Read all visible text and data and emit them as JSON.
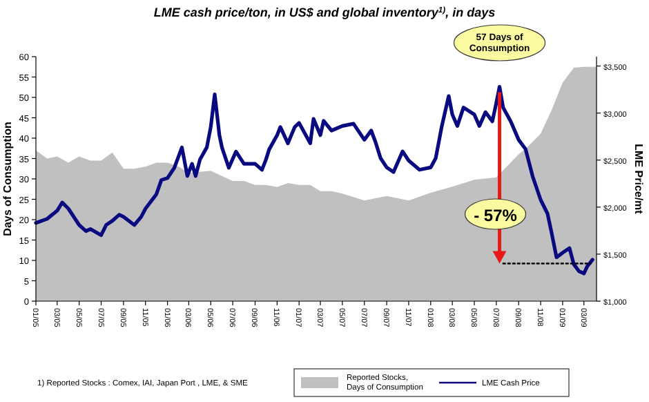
{
  "chart_data": {
    "type": "area",
    "title": "LME cash price/ton, in US$ and global inventory$^{1)}$, in days",
    "ylabel": "Days of Consumption",
    "y2label": "LME Price/mt",
    "xlim": [
      "2005-01-01",
      "2009-04-05"
    ],
    "xticks": [
      {
        "value": "2005-01",
        "label": "01/05"
      },
      {
        "value": "2005-03",
        "label": "03/05"
      },
      {
        "value": "2005-05",
        "label": "05/05"
      },
      {
        "value": "2005-07",
        "label": "07/05"
      },
      {
        "value": "2005-09",
        "label": "09/05"
      },
      {
        "value": "2005-11",
        "label": "11/05"
      },
      {
        "value": "2006-01",
        "label": "01/06"
      },
      {
        "value": "2006-03",
        "label": "03/06"
      },
      {
        "value": "2006-05",
        "label": "05/06"
      },
      {
        "value": "2006-07",
        "label": "07/06"
      },
      {
        "value": "2006-09",
        "label": "09/06"
      },
      {
        "value": "2006-11",
        "label": "11/06"
      },
      {
        "value": "2007-01",
        "label": "01/07"
      },
      {
        "value": "2007-03",
        "label": "03/07"
      },
      {
        "value": "2007-05",
        "label": "05/07"
      },
      {
        "value": "2007-07",
        "label": "07/07"
      },
      {
        "value": "2007-09",
        "label": "09/07"
      },
      {
        "value": "2007-11",
        "label": "11/07"
      },
      {
        "value": "2008-01",
        "label": "01/08"
      },
      {
        "value": "2008-03",
        "label": "03/08"
      },
      {
        "value": "2008-05",
        "label": "05/08"
      },
      {
        "value": "2008-07",
        "label": "07/08"
      },
      {
        "value": "2008-09",
        "label": "09/08"
      },
      {
        "value": "2008-11",
        "label": "11/08"
      },
      {
        "value": "2009-01",
        "label": "01/09"
      },
      {
        "value": "2009-03",
        "label": "03/09"
      }
    ],
    "ylim": [
      0,
      60
    ],
    "yticks": [
      0,
      5,
      10,
      15,
      20,
      25,
      30,
      35,
      40,
      45,
      50,
      55,
      60
    ],
    "y2lim": [
      1000,
      3600
    ],
    "y2ticks": [
      {
        "value": 1000,
        "label": "$1,000"
      },
      {
        "value": 1500,
        "label": "$1,500"
      },
      {
        "value": 2000,
        "label": "$2,000"
      },
      {
        "value": 2500,
        "label": "$2,500"
      },
      {
        "value": 3000,
        "label": "$3,000"
      },
      {
        "value": 3500,
        "label": "$3,500"
      }
    ],
    "grid": false,
    "legend": "bottom",
    "series": [
      {
        "name": "Reported Stocks, Days of Consumption",
        "color": "#c0c0c0",
        "x": [
          "2005-01",
          "2005-02",
          "2005-03",
          "2005-04",
          "2005-05",
          "2005-06",
          "2005-07",
          "2005-08",
          "2005-09",
          "2005-10",
          "2005-11",
          "2005-12",
          "2006-01",
          "2006-02",
          "2006-03",
          "2006-05",
          "2006-07",
          "2006-08",
          "2006-09",
          "2006-10",
          "2006-11",
          "2006-12",
          "2007-01",
          "2007-02",
          "2007-03",
          "2007-04",
          "2007-05",
          "2007-07",
          "2007-09",
          "2007-11",
          "2008-01",
          "2008-03",
          "2008-05",
          "2008-07",
          "2008-08",
          "2008-09",
          "2008-10",
          "2008-11",
          "2008-12",
          "2009-01",
          "2009-02",
          "2009-03",
          "2009-04-05"
        ],
        "values": [
          37,
          35,
          35.5,
          34,
          35.5,
          34.5,
          34.5,
          36.5,
          32.5,
          32.5,
          33,
          34,
          34,
          33,
          31.5,
          32,
          29.5,
          29.5,
          28.5,
          28.5,
          28,
          29,
          28.5,
          28.5,
          27,
          27,
          26.4,
          24.7,
          25.8,
          24.7,
          26.6,
          28.1,
          29.8,
          30.4,
          33.2,
          36,
          38.3,
          41.1,
          46.8,
          53.6,
          57.3,
          57.5,
          57.5
        ]
      },
      {
        "name": "LME Cash Price",
        "type": "line",
        "axis": "y2",
        "color": "#0a0a80",
        "x": [
          "2005-01",
          "2005-02",
          "2005-03-01",
          "2005-03-15",
          "2005-04",
          "2005-05",
          "2005-05-20",
          "2005-06",
          "2005-07",
          "2005-07-15",
          "2005-08",
          "2005-08-20",
          "2005-09",
          "2005-10",
          "2005-10-20",
          "2005-11",
          "2005-12",
          "2005-12-15",
          "2006-01",
          "2006-01-20",
          "2006-02-10",
          "2006-02-25",
          "2006-03-10",
          "2006-03-20",
          "2006-04",
          "2006-04-20",
          "2006-05-01",
          "2006-05-12",
          "2006-05-25",
          "2006-06",
          "2006-06-20",
          "2006-07-10",
          "2006-08",
          "2006-09",
          "2006-09-20",
          "2006-10",
          "2006-10-10",
          "2006-11",
          "2006-11-10",
          "2006-12",
          "2006-12-20",
          "2007-01",
          "2007-02",
          "2007-02-10",
          "2007-03",
          "2007-03-10",
          "2007-04",
          "2007-05",
          "2007-06",
          "2007-07",
          "2007-07-20",
          "2007-08",
          "2007-08-15",
          "2007-09",
          "2007-09-20",
          "2007-10-15",
          "2007-11",
          "2007-12",
          "2008-01",
          "2008-01-15",
          "2008-02",
          "2008-02-20",
          "2008-03",
          "2008-03-15",
          "2008-04",
          "2008-05",
          "2008-05-15",
          "2008-06",
          "2008-06-20",
          "2008-07",
          "2008-07-10",
          "2008-07-20",
          "2008-08-10",
          "2008-09",
          "2008-09-20",
          "2008-10-10",
          "2008-11",
          "2008-11-20",
          "2008-12",
          "2008-12-15",
          "2009-01",
          "2009-01-20",
          "2009-02",
          "2009-02-15",
          "2009-03",
          "2009-03-10",
          "2009-03-25"
        ],
        "values": [
          1832,
          1875,
          1962,
          2049,
          1984,
          1810,
          1745,
          1767,
          1702,
          1810,
          1854,
          1919,
          1897,
          1810,
          1897,
          1984,
          2136,
          2288,
          2309,
          2418,
          2635,
          2331,
          2461,
          2331,
          2505,
          2635,
          2852,
          3199,
          2765,
          2635,
          2418,
          2591,
          2461,
          2461,
          2396,
          2505,
          2613,
          2765,
          2852,
          2678,
          2852,
          2895,
          2678,
          2939,
          2765,
          2917,
          2814,
          2863,
          2887,
          2716,
          2814,
          2691,
          2520,
          2422,
          2373,
          2593,
          2495,
          2397,
          2422,
          2520,
          2863,
          3181,
          2985,
          2863,
          3059,
          2985,
          2863,
          3010,
          2912,
          3108,
          3280,
          3059,
          2912,
          2716,
          2618,
          2324,
          2078,
          1931,
          1735,
          1466,
          1515,
          1564,
          1392,
          1319,
          1294,
          1368,
          1441
        ]
      },
      {
        "type": "line",
        "axis": "y2",
        "color": "#000000",
        "line_style": "dotted",
        "x": [
          "2008-07-20",
          "2009-03-20"
        ],
        "values": [
          1400,
          1400
        ]
      }
    ],
    "annotations": [
      "57 Days of Consumption",
      "- 57%",
      "1) Reported Stocks : Comex, IAI, Japan Port , LME, & SME"
    ]
  }
}
